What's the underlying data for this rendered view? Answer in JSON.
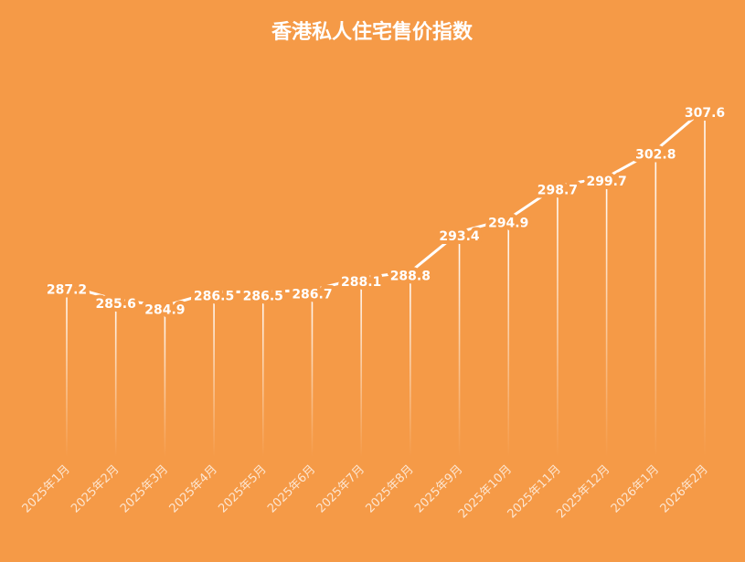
{
  "chart_data": {
    "type": "lollipop-line",
    "title": "香港私人住宅售价指数",
    "categories": [
      "2025年1月",
      "2025年2月",
      "2025年3月",
      "2025年4月",
      "2025年5月",
      "2025年6月",
      "2025年7月",
      "2025年8月",
      "2025年9月",
      "2025年10月",
      "2025年11月",
      "2025年12月",
      "2026年1月",
      "2026年2月"
    ],
    "values": [
      287.2,
      285.6,
      284.9,
      286.5,
      286.5,
      286.7,
      288.1,
      288.8,
      293.4,
      294.9,
      298.7,
      299.7,
      302.8,
      307.6
    ],
    "color": "#ffffff",
    "background": "#f59a47",
    "ylim": [
      267.5,
      310
    ]
  }
}
